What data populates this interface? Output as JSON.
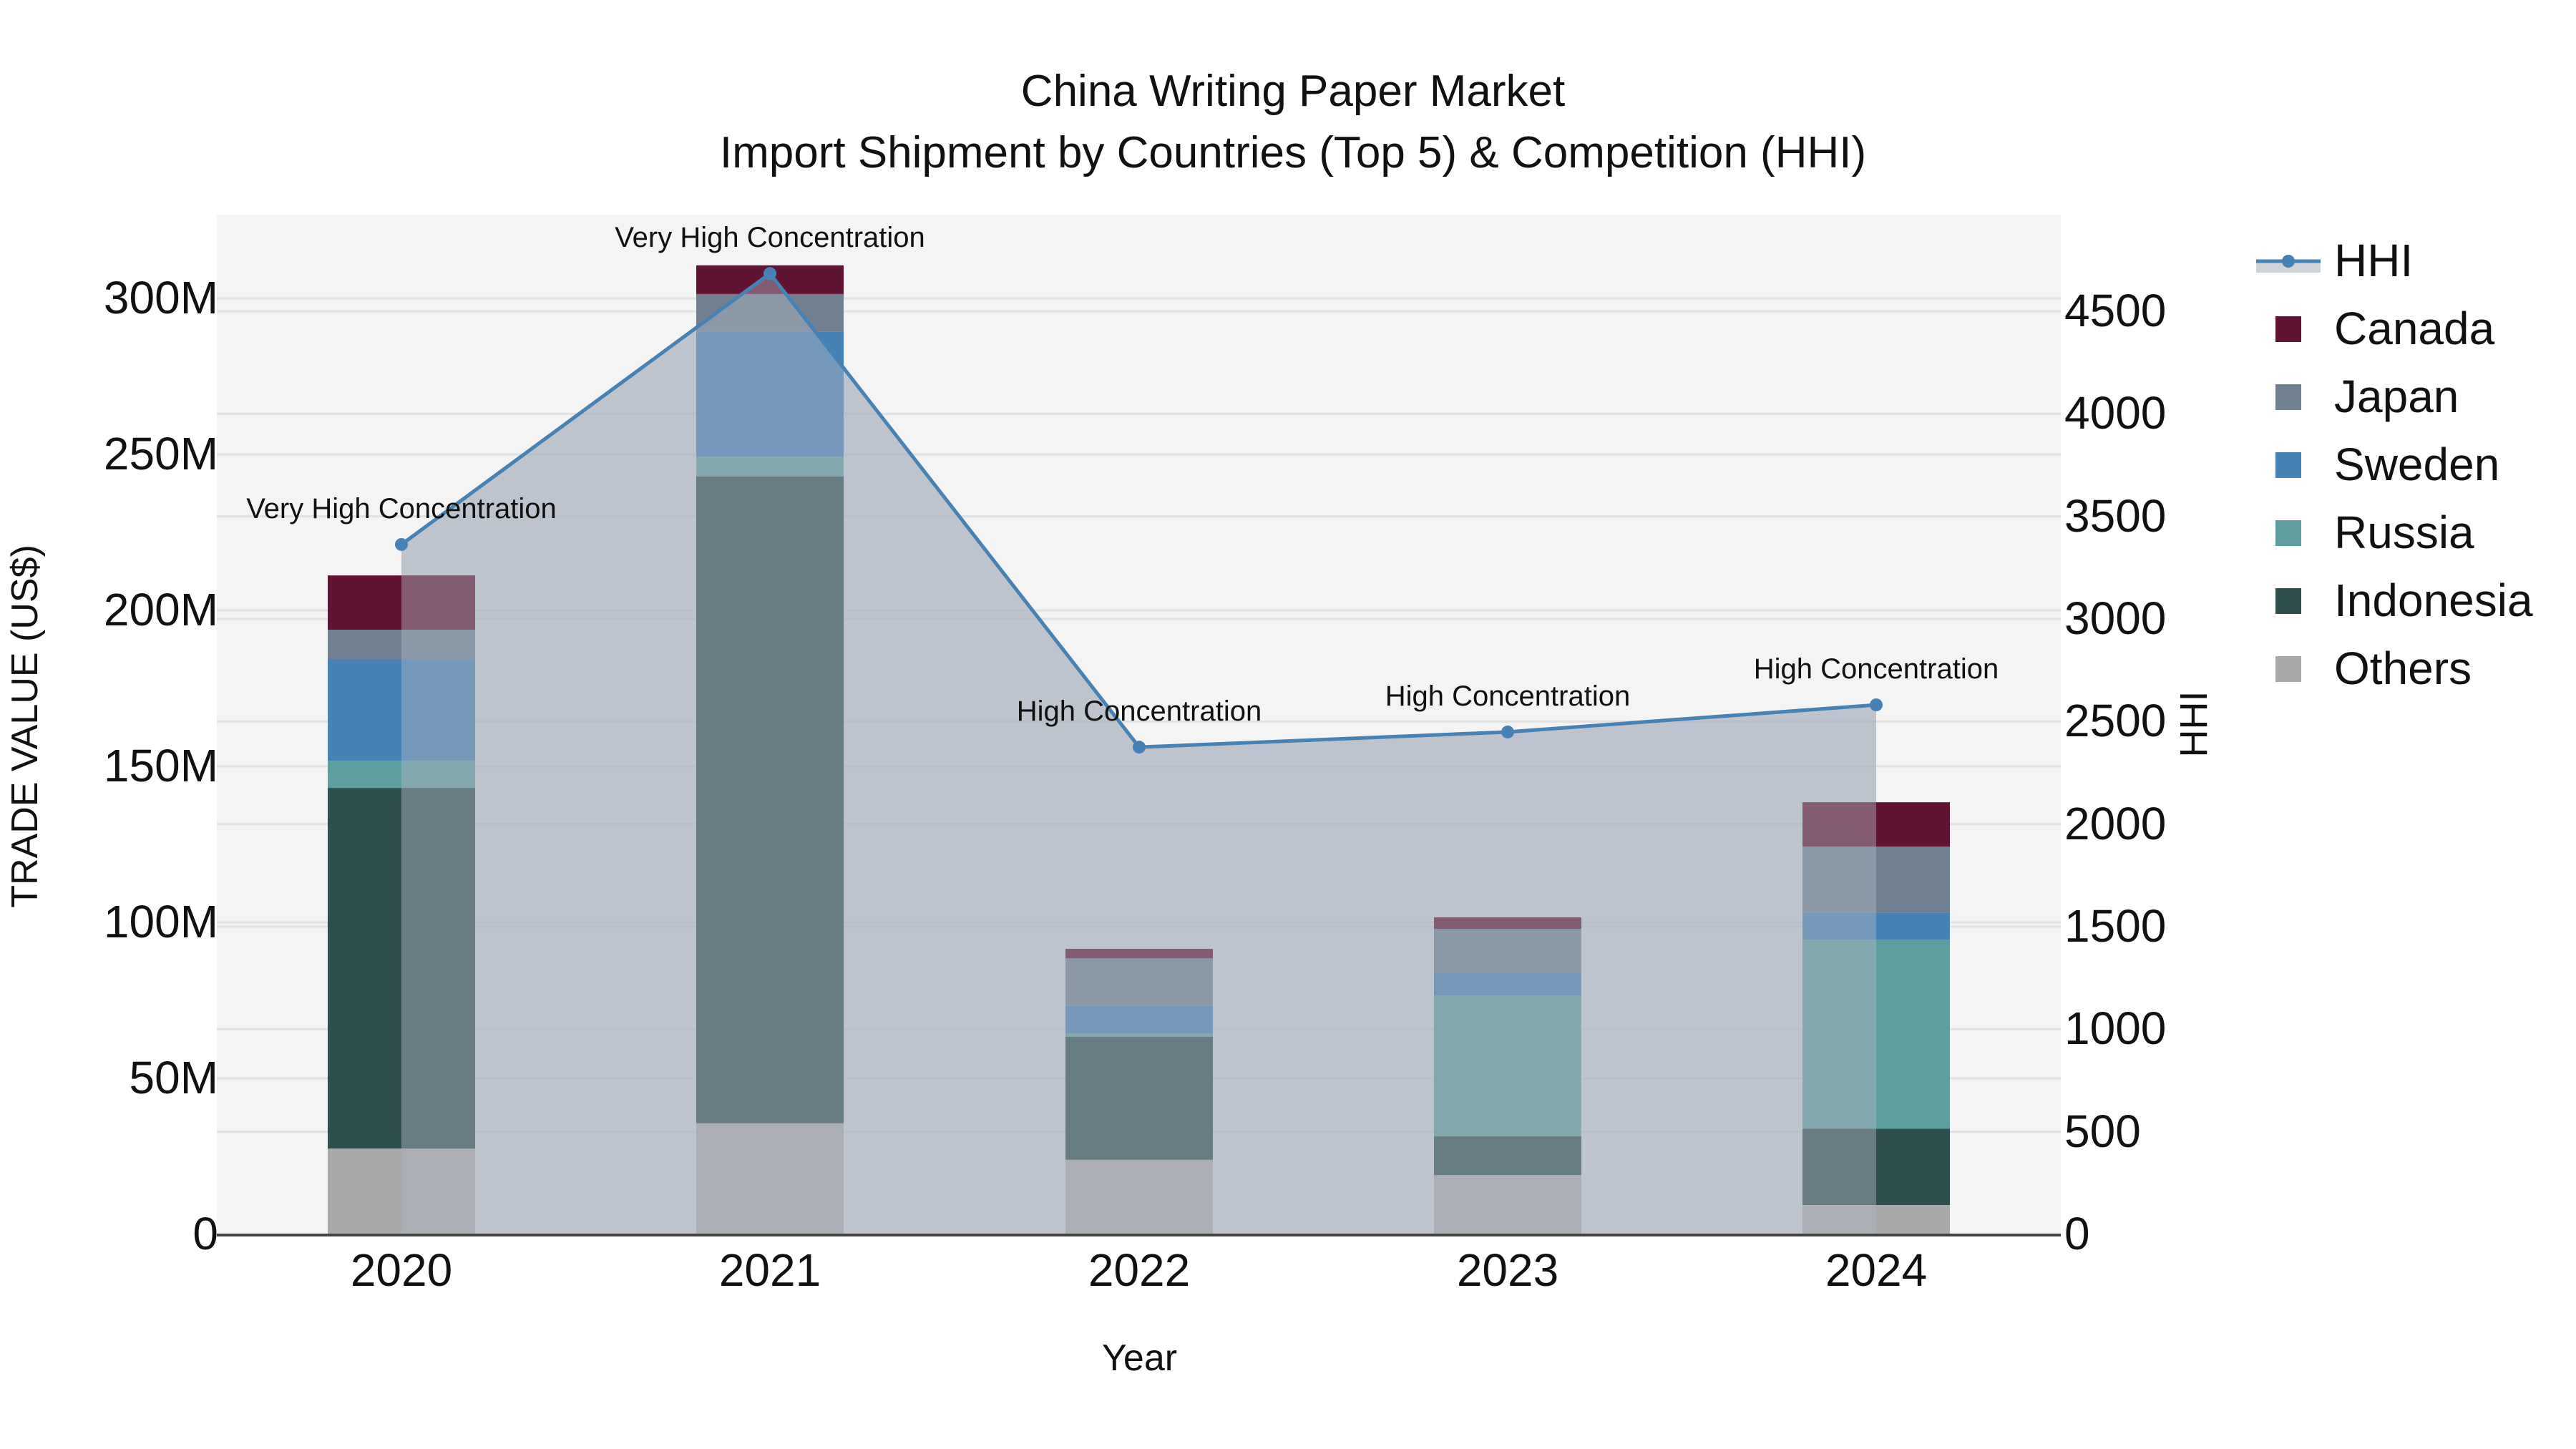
{
  "chart_data": {
    "type": "bar",
    "subtype": "stacked bar + line/area (dual axis)",
    "title": "China Writing Paper Market",
    "subtitle": "Import Shipment by Countries (Top 5) & Competition (HHI)",
    "xlabel": "Year",
    "ylabel": "TRADE VALUE (US$)",
    "y2label": "HHI",
    "categories": [
      "2020",
      "2021",
      "2022",
      "2023",
      "2024"
    ],
    "ylim": [
      0,
      327
    ],
    "y_unit": "M",
    "yticks": [
      "0",
      "50M",
      "100M",
      "150M",
      "200M",
      "250M",
      "300M"
    ],
    "y2lim": [
      0,
      4950
    ],
    "y2ticks": [
      "0",
      "500",
      "1000",
      "1500",
      "2000",
      "2500",
      "3000",
      "3500",
      "4000",
      "4500"
    ],
    "grid": true,
    "legend_position": "right",
    "series": [
      {
        "name": "Others",
        "color": "#a9a9a9",
        "values": [
          27.5,
          35.6,
          23.9,
          19.0,
          9.4
        ]
      },
      {
        "name": "Indonesia",
        "color": "#2f4f4f",
        "values": [
          115.6,
          207.3,
          39.4,
          12.4,
          24.5
        ]
      },
      {
        "name": "Russia",
        "color": "#5f9ea0",
        "values": [
          8.7,
          6.4,
          1.1,
          45.2,
          60.6
        ]
      },
      {
        "name": "Sweden",
        "color": "#4682b4",
        "values": [
          32.6,
          40.1,
          8.8,
          7.3,
          8.5
        ]
      },
      {
        "name": "Japan",
        "color": "#708090",
        "values": [
          9.4,
          12.0,
          15.3,
          14.0,
          21.3
        ]
      },
      {
        "name": "Canada",
        "color": "#611334",
        "values": [
          17.4,
          9.2,
          3.0,
          3.7,
          14.2
        ]
      }
    ],
    "totals": [
      211.2,
      310.6,
      91.5,
      101.6,
      138.5
    ],
    "hhi": {
      "name": "HHI",
      "axis": "right",
      "line_color": "#4682b4",
      "fill_color": "#c8ccd4",
      "values": [
        3363,
        4684,
        2375,
        2449,
        2581
      ],
      "annotations": [
        "Very High Concentration",
        "Very High Concentration",
        "High Concentration",
        "High Concentration",
        "High Concentration"
      ]
    }
  },
  "legend": {
    "items": [
      {
        "label": "HHI",
        "kind": "line",
        "color": "#4682b4"
      },
      {
        "label": "Canada",
        "kind": "box",
        "color": "#611334"
      },
      {
        "label": "Japan",
        "kind": "box",
        "color": "#708090"
      },
      {
        "label": "Sweden",
        "kind": "box",
        "color": "#4682b4"
      },
      {
        "label": "Russia",
        "kind": "box",
        "color": "#5f9ea0"
      },
      {
        "label": "Indonesia",
        "kind": "box",
        "color": "#2f4f4f"
      },
      {
        "label": "Others",
        "kind": "box",
        "color": "#a9a9a9"
      }
    ]
  },
  "colors": {
    "plot_bg": "#f4f4f4",
    "grid": "#e2e2e2",
    "axis_line": "#444444"
  }
}
